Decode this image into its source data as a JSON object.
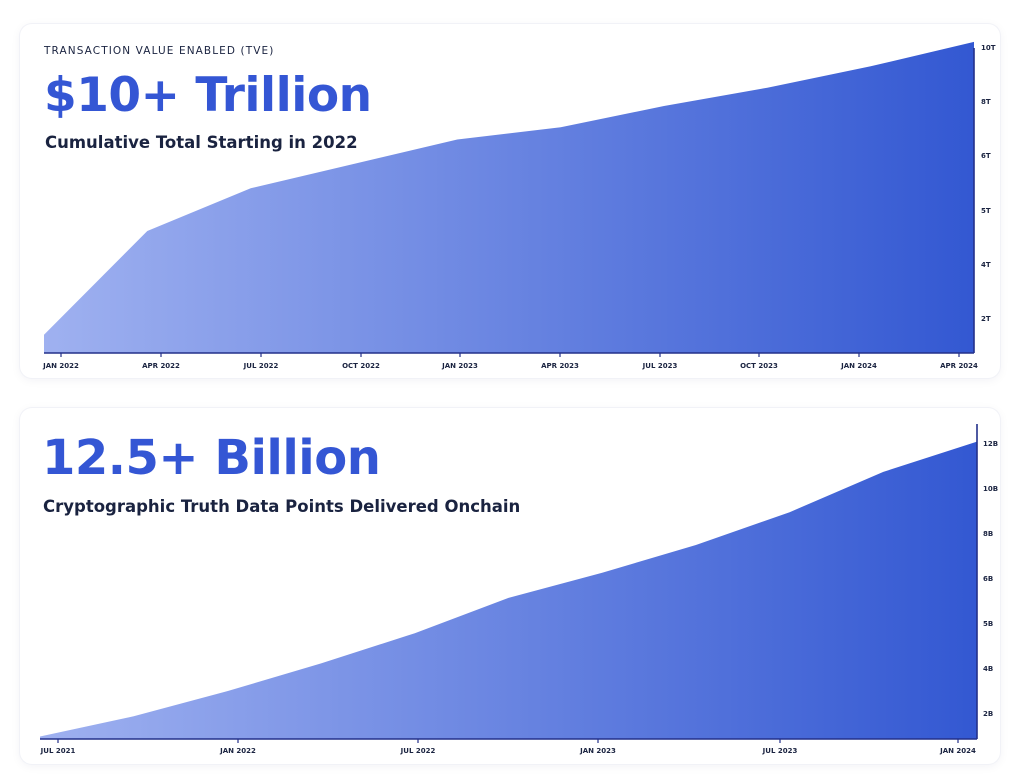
{
  "charts": [
    {
      "eyebrow": "TRANSACTION VALUE ENABLED (TVE)",
      "headline": "$10+ Trillion",
      "subhead": "Cumulative Total Starting in 2022"
    },
    {
      "eyebrow": "",
      "headline": "12.5+ Billion",
      "subhead": "Cryptographic Truth Data Points Delivered Onchain"
    }
  ],
  "colors": {
    "accent": "#3456d4",
    "gradient_start": "#9fb1f0",
    "gradient_end": "#3358d2",
    "axis": "#23308a",
    "text_dark": "#1a2340"
  },
  "chart_data": [
    {
      "type": "area",
      "title": "",
      "x_ticks": [
        "JAN 2022",
        "APR 2022",
        "JUL 2022",
        "OCT 2022",
        "JAN 2023",
        "APR 2023",
        "JUL 2023",
        "OCT 2023",
        "JAN 2024",
        "APR 2024"
      ],
      "y_ticks": [
        "2T",
        "4T",
        "5T",
        "6T",
        "8T",
        "10T"
      ],
      "ylim": [
        0,
        10
      ],
      "grid": false,
      "x": [
        "JAN 2022",
        "APR 2022",
        "JUL 2022",
        "OCT 2022",
        "JAN 2023",
        "APR 2023",
        "JUL 2023",
        "OCT 2023",
        "JAN 2024",
        "APR 2024"
      ],
      "values": [
        0.6,
        4.0,
        5.4,
        6.2,
        7.0,
        7.4,
        8.1,
        8.7,
        9.4,
        10.2
      ]
    },
    {
      "type": "area",
      "title": "",
      "x_ticks": [
        "JUL 2021",
        "JAN 2022",
        "JUL 2022",
        "JAN 2023",
        "JUL 2023",
        "JAN 2024"
      ],
      "y_ticks": [
        "2B",
        "4B",
        "5B",
        "6B",
        "8B",
        "10B",
        "12B"
      ],
      "ylim": [
        0,
        12.5
      ],
      "grid": false,
      "x": [
        "JUL 2021",
        "OCT 2021",
        "JAN 2022",
        "APR 2022",
        "JUL 2022",
        "OCT 2022",
        "JAN 2023",
        "APR 2023",
        "JUL 2023",
        "OCT 2023",
        "JAN 2024"
      ],
      "values": [
        0.1,
        0.9,
        1.9,
        3.0,
        4.2,
        5.6,
        6.6,
        7.7,
        9.0,
        10.6,
        11.8
      ]
    }
  ]
}
